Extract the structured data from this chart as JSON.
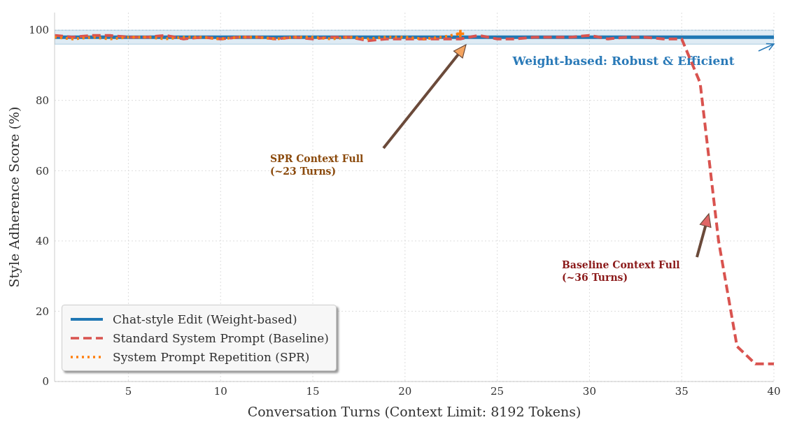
{
  "chart_data": {
    "type": "line",
    "xlabel": "Conversation Turns (Context Limit: 8192 Tokens)",
    "ylabel": "Style Adherence Score (%)",
    "x": [
      1,
      2,
      3,
      4,
      5,
      6,
      7,
      8,
      9,
      10,
      11,
      12,
      13,
      14,
      15,
      16,
      17,
      18,
      19,
      20,
      21,
      22,
      23,
      24,
      25,
      26,
      27,
      28,
      29,
      30,
      31,
      32,
      33,
      34,
      35,
      36,
      37,
      38,
      39,
      40
    ],
    "series": [
      {
        "name": "Chat-style Edit (Weight-based)",
        "color": "#1f77b4",
        "line_style": "solid",
        "values": [
          98,
          98,
          98,
          98,
          98,
          98,
          98,
          98,
          98,
          98,
          98,
          98,
          98,
          98,
          98,
          98,
          98,
          98,
          98,
          98,
          98,
          98,
          98,
          98,
          98,
          98,
          98,
          98,
          98,
          98,
          98,
          98,
          98,
          98,
          98,
          98,
          98,
          98,
          98,
          98
        ]
      },
      {
        "name": "Standard System Prompt (Baseline)",
        "color": "#d9534f",
        "line_style": "dashed",
        "values": [
          98.5,
          98,
          98.5,
          98.5,
          98,
          98,
          98.5,
          97.5,
          98,
          97.5,
          98,
          98,
          97.5,
          98,
          97.5,
          98,
          98,
          97,
          97.5,
          97.5,
          97.5,
          97.5,
          97.5,
          98.5,
          97.5,
          97.5,
          98,
          98,
          98,
          98.5,
          97.5,
          98,
          98,
          97.5,
          97.5,
          85,
          40,
          10,
          5,
          5
        ]
      },
      {
        "name": "System Prompt Repetition (SPR)",
        "color": "#ff7f0e",
        "line_style": "dotted",
        "x": [
          1,
          2,
          3,
          4,
          5,
          6,
          7,
          8,
          9,
          10,
          11,
          12,
          13,
          14,
          15,
          16,
          17,
          18,
          19,
          20,
          21,
          22,
          23
        ],
        "values": [
          98,
          97.5,
          98,
          97.5,
          98,
          98,
          97.5,
          98,
          98,
          97.5,
          98,
          98,
          97.5,
          98,
          98,
          97.5,
          98,
          97.5,
          98,
          98,
          97.5,
          98,
          99
        ]
      },
      {
        "type": "scatter",
        "marker": "cross",
        "color": "#ff7f0e",
        "x": [
          23
        ],
        "values": [
          99
        ]
      }
    ],
    "bands": [
      {
        "axis": "y",
        "from": 96,
        "to": 100,
        "color": "#1f77b4"
      }
    ],
    "annotations": [
      "Weight-based: Robust & Efficient",
      "SPR Context Full\n(~23 Turns)",
      "Baseline Context Full\n(~36 Turns)"
    ],
    "xlim": [
      1,
      40
    ],
    "xticks": [
      5,
      10,
      15,
      20,
      25,
      30,
      35,
      40
    ],
    "ylim": [
      0,
      105
    ],
    "yticks": [
      0,
      20,
      40,
      60,
      80,
      100
    ],
    "grid": true,
    "legend": "bottom left",
    "marker": "none"
  }
}
